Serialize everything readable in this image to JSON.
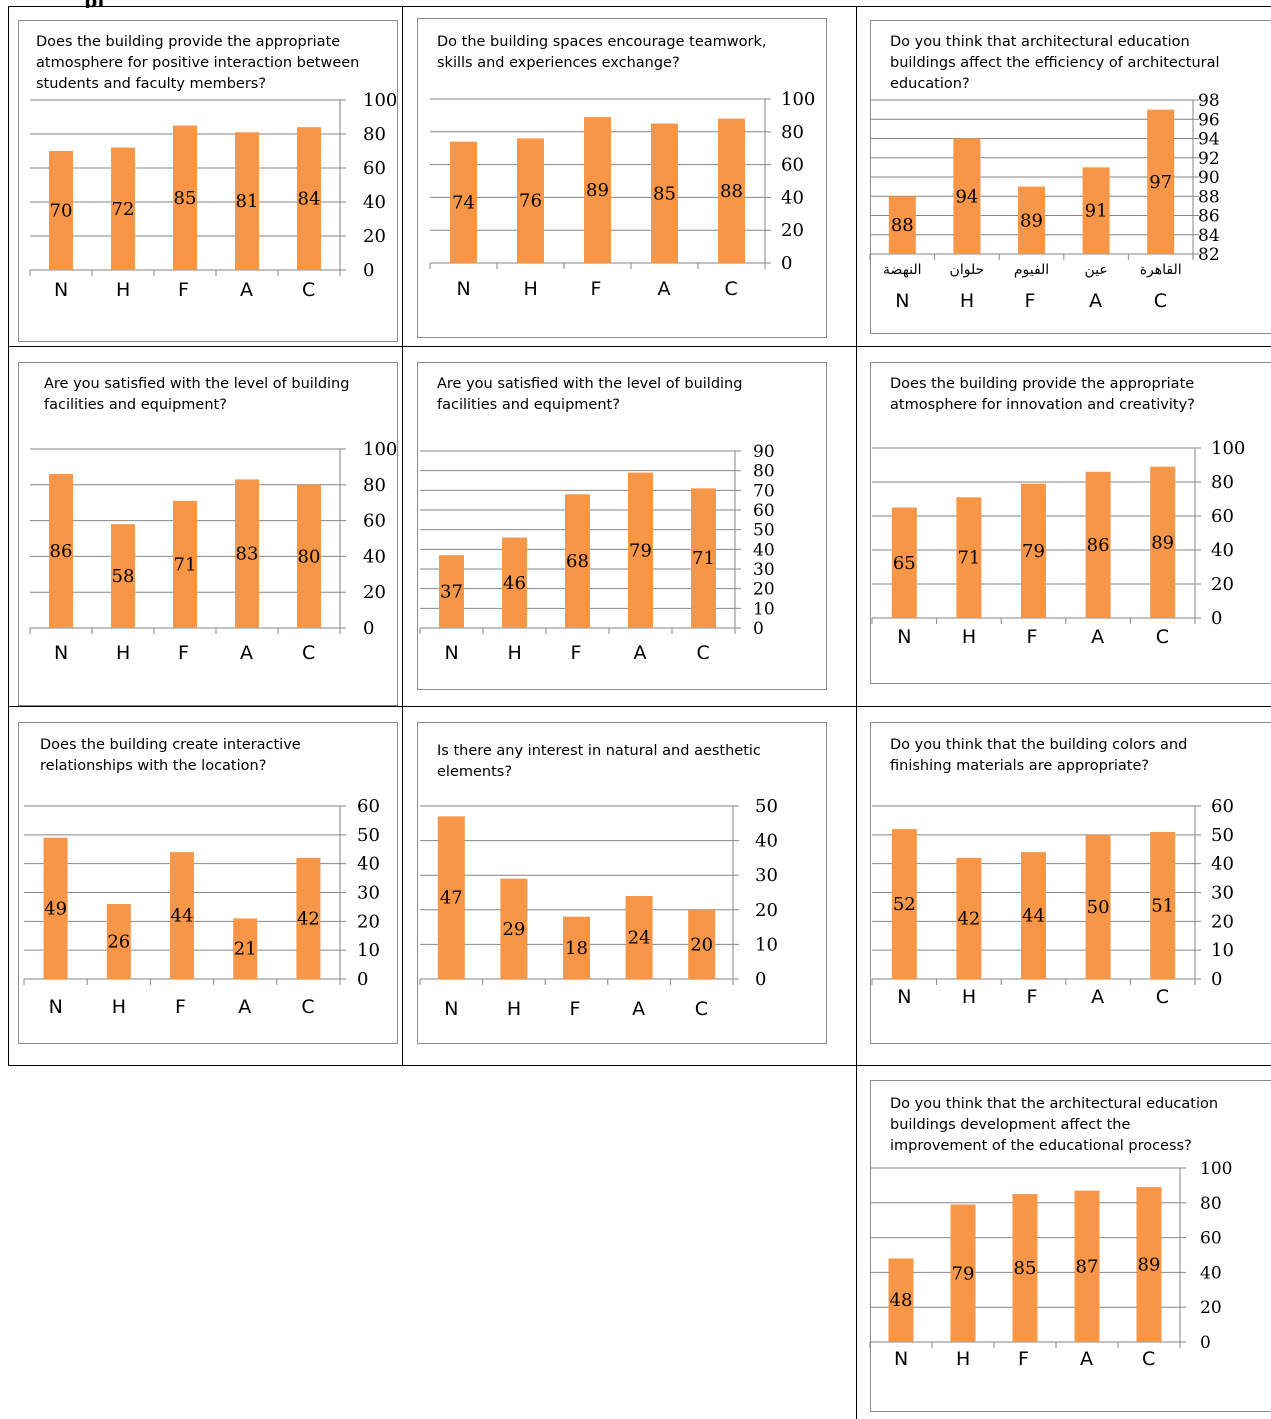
{
  "heading_fragment": "pi",
  "colors": {
    "bar": "#F79646",
    "grid": "#868686",
    "axis": "#868686",
    "text": "#000000"
  },
  "chart_data": [
    {
      "type": "bar",
      "title": "Does the building provide the appropriate atmosphere for positive interaction between students and faculty members?",
      "categories": [
        "N",
        "H",
        "F",
        "A",
        "C"
      ],
      "values": [
        70,
        72,
        85,
        81,
        84
      ],
      "ylim": [
        0,
        100
      ],
      "ytick_step": 20,
      "y_axis": "right",
      "grid": true,
      "legend": "none"
    },
    {
      "type": "bar",
      "title": "Do the building spaces encourage teamwork, skills and experiences exchange?",
      "categories": [
        "N",
        "H",
        "F",
        "A",
        "C"
      ],
      "values": [
        74,
        76,
        89,
        85,
        88
      ],
      "ylim": [
        0,
        100
      ],
      "ytick_step": 20,
      "y_axis": "right",
      "grid": true,
      "legend": "none"
    },
    {
      "type": "bar",
      "title": "Do you think that architectural education buildings affect the efficiency of architectural education?",
      "categories": [
        "N",
        "H",
        "F",
        "A",
        "C"
      ],
      "tick_labels": [
        "النهضة",
        "حلوان",
        "الفيوم",
        "عين",
        "القاهرة"
      ],
      "values": [
        88,
        94,
        89,
        91,
        97
      ],
      "ylim": [
        82,
        98
      ],
      "ytick_step": 2,
      "y_axis": "right",
      "grid": true,
      "legend": "none"
    },
    {
      "type": "bar",
      "title": "Are you satisfied with the level of building facilities and equipment?",
      "categories": [
        "N",
        "H",
        "F",
        "A",
        "C"
      ],
      "values": [
        86,
        58,
        71,
        83,
        80
      ],
      "ylim": [
        0,
        100
      ],
      "ytick_step": 20,
      "y_axis": "right",
      "grid": true,
      "legend": "none"
    },
    {
      "type": "bar",
      "title": "Are you satisfied with the level of building facilities and equipment?",
      "categories": [
        "N",
        "H",
        "F",
        "A",
        "C"
      ],
      "values": [
        37,
        46,
        68,
        79,
        71
      ],
      "ylim": [
        0,
        90
      ],
      "ytick_step": 10,
      "y_axis": "right",
      "grid": true,
      "legend": "none"
    },
    {
      "type": "bar",
      "title": "Does the building provide the appropriate atmosphere for innovation and creativity?",
      "categories": [
        "N",
        "H",
        "F",
        "A",
        "C"
      ],
      "values": [
        65,
        71,
        79,
        86,
        89
      ],
      "ylim": [
        0,
        100
      ],
      "ytick_step": 20,
      "y_axis": "right",
      "grid": true,
      "legend": "none"
    },
    {
      "type": "bar",
      "title": "Does the building create interactive relationships with the location?",
      "categories": [
        "N",
        "H",
        "F",
        "A",
        "C"
      ],
      "values": [
        49,
        26,
        44,
        21,
        42
      ],
      "ylim": [
        0,
        60
      ],
      "ytick_step": 10,
      "y_axis": "right",
      "grid": true,
      "legend": "none"
    },
    {
      "type": "bar",
      "title": "Is there any interest in natural and aesthetic elements?",
      "categories": [
        "N",
        "H",
        "F",
        "A",
        "C"
      ],
      "values": [
        47,
        29,
        18,
        24,
        20
      ],
      "ylim": [
        0,
        50
      ],
      "ytick_step": 10,
      "y_axis": "right",
      "grid": true,
      "legend": "none"
    },
    {
      "type": "bar",
      "title": "Do you think that the building colors and finishing materials are appropriate?",
      "categories": [
        "N",
        "H",
        "F",
        "A",
        "C"
      ],
      "values": [
        52,
        42,
        44,
        50,
        51
      ],
      "ylim": [
        0,
        60
      ],
      "ytick_step": 10,
      "y_axis": "right",
      "grid": true,
      "legend": "none"
    },
    {
      "type": "bar",
      "title": "Do you think that the architectural education buildings development affect the improvement of the educational process?",
      "categories": [
        "N",
        "H",
        "F",
        "A",
        "C"
      ],
      "values": [
        48,
        79,
        85,
        87,
        89
      ],
      "ylim": [
        0,
        100
      ],
      "ytick_step": 20,
      "y_axis": "right",
      "grid": true,
      "legend": "none"
    }
  ]
}
